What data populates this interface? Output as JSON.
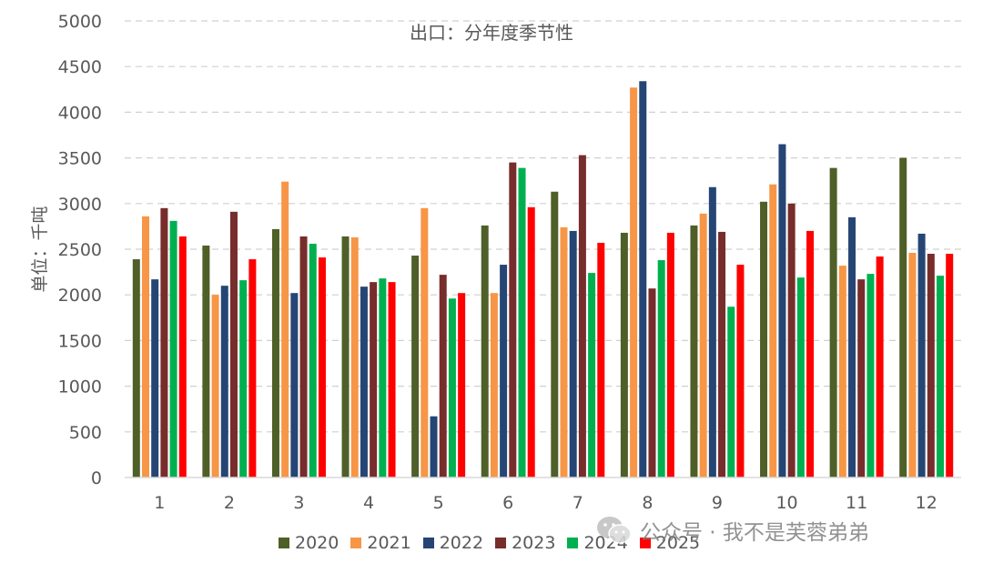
{
  "chart_data": {
    "type": "bar",
    "title": "出口：分年度季节性",
    "ylabel": "单位：千吨",
    "xlabel": "",
    "ylim": [
      0,
      5000
    ],
    "yticks": [
      0,
      500,
      1000,
      1500,
      2000,
      2500,
      3000,
      3500,
      4000,
      4500,
      5000
    ],
    "grid": true,
    "legend_position": "bottom",
    "categories": [
      "1",
      "2",
      "3",
      "4",
      "5",
      "6",
      "7",
      "8",
      "9",
      "10",
      "11",
      "12"
    ],
    "series": [
      {
        "name": "2020",
        "color": "#4E5F28",
        "values": [
          2390,
          2540,
          2720,
          2640,
          2430,
          2760,
          3130,
          2680,
          2760,
          3020,
          3390,
          3500
        ]
      },
      {
        "name": "2021",
        "color": "#F79646",
        "values": [
          2860,
          2000,
          3240,
          2630,
          2950,
          2020,
          2740,
          4270,
          2890,
          3210,
          2320,
          2460
        ]
      },
      {
        "name": "2022",
        "color": "#254674",
        "values": [
          2170,
          2100,
          2020,
          2090,
          670,
          2330,
          2700,
          4340,
          3180,
          3650,
          2850,
          2670
        ]
      },
      {
        "name": "2023",
        "color": "#772D2B",
        "values": [
          2950,
          2910,
          2640,
          2140,
          2220,
          3450,
          3530,
          2070,
          2690,
          3000,
          2170,
          2450
        ]
      },
      {
        "name": "2024",
        "color": "#00B050",
        "values": [
          2810,
          2160,
          2560,
          2180,
          1960,
          3390,
          2240,
          2380,
          1870,
          2190,
          2230,
          2210
        ]
      },
      {
        "name": "2025",
        "color": "#FF0000",
        "values": [
          2640,
          2390,
          2410,
          2140,
          2020,
          2960,
          2570,
          2680,
          2330,
          2700,
          2420,
          2450
        ]
      }
    ]
  },
  "watermark": {
    "text": "公众号 · 我不是芙蓉弟弟",
    "icon": "wechat-icon"
  }
}
